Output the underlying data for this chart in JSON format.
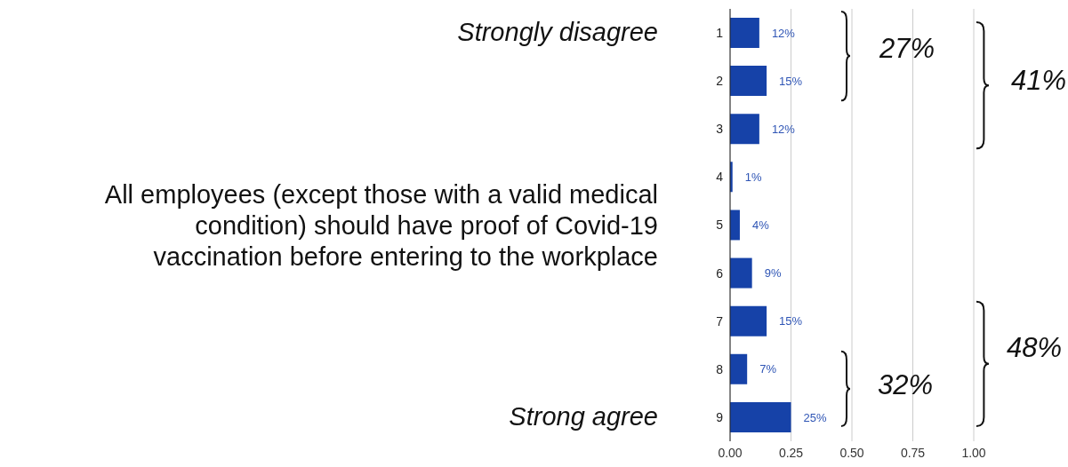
{
  "chart_data": {
    "type": "bar",
    "orientation": "horizontal",
    "categories": [
      "1",
      "2",
      "3",
      "4",
      "5",
      "6",
      "7",
      "8",
      "9"
    ],
    "values": [
      0.12,
      0.15,
      0.12,
      0.01,
      0.04,
      0.09,
      0.15,
      0.07,
      0.25
    ],
    "value_labels": [
      "12%",
      "15%",
      "12%",
      "1%",
      "4%",
      "9%",
      "15%",
      "7%",
      "25%"
    ],
    "color": "#1642a8",
    "xlim": [
      0,
      1
    ],
    "xticks": [
      {
        "value": 0,
        "label": "0.00"
      },
      {
        "value": 0.25,
        "label": "0.25"
      },
      {
        "value": 0.5,
        "label": "0.50"
      },
      {
        "value": 0.75,
        "label": "0.75"
      },
      {
        "value": 1,
        "label": "1.00"
      }
    ],
    "grid": "x",
    "annotations": [
      "Strongly disagree",
      "All employees (except those with a valid medical condition) should have proof of Covid-19 vaccination before entering to the workplace",
      "Strong agree",
      "27%",
      "41%",
      "48%",
      "32%"
    ]
  }
}
